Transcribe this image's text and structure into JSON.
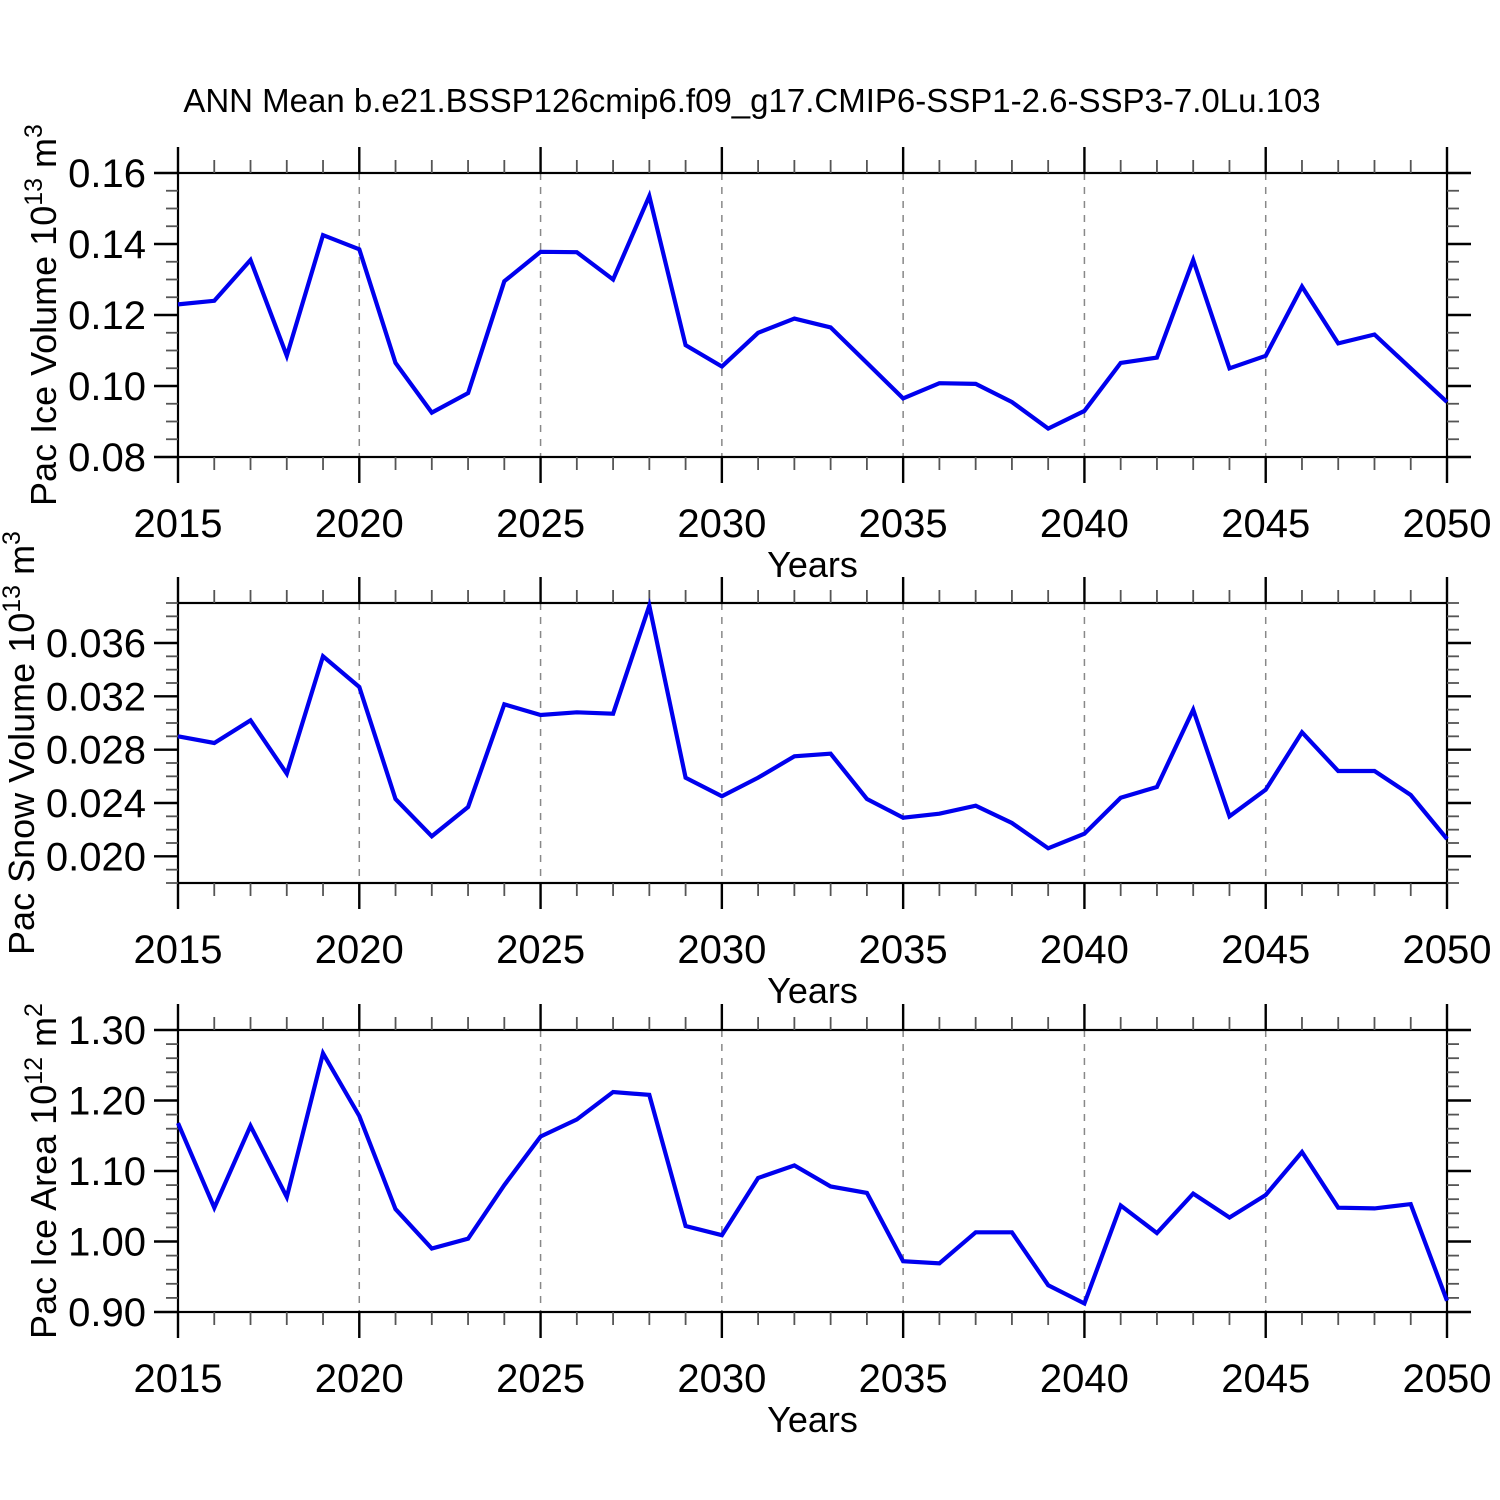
{
  "title": "ANN Mean b.e21.BSSP126cmip6.f09_g17.CMIP6-SSP1-2.6-SSP3-7.0Lu.103",
  "colors": {
    "line": "#0000ee",
    "grid": "#888888",
    "axis": "#000000",
    "minor_tick": "#555555"
  },
  "chart_data": [
    {
      "type": "line",
      "name": "pac-ice-volume",
      "ylabel_prefix": "Pac Ice Volume 10",
      "ylabel_exp": "13",
      "ylabel_unit": " m",
      "ylabel_unit_exp": "3",
      "xlabel": "Years",
      "ylim": [
        0.08,
        0.16
      ],
      "y_major_step": 0.02,
      "y_minor_step": 0.005,
      "tick_decimals": 2,
      "xlim": [
        2015,
        2050
      ],
      "x_major_step": 5,
      "x_minor_step": 1,
      "grid_years": [
        2020,
        2025,
        2030,
        2035,
        2040,
        2045
      ],
      "x_tick_labels": [
        "2015",
        "2020",
        "2025",
        "2030",
        "2035",
        "2040",
        "2045",
        "2050"
      ],
      "years": [
        2015,
        2016,
        2017,
        2018,
        2019,
        2020,
        2021,
        2022,
        2023,
        2024,
        2025,
        2026,
        2027,
        2028,
        2029,
        2030,
        2031,
        2032,
        2033,
        2034,
        2035,
        2036,
        2037,
        2038,
        2039,
        2040,
        2041,
        2042,
        2043,
        2044,
        2045,
        2046,
        2047,
        2048,
        2049,
        2050
      ],
      "values": [
        0.123,
        0.124,
        0.1355,
        0.1085,
        0.1425,
        0.1385,
        0.1065,
        0.0925,
        0.098,
        0.1295,
        0.1378,
        0.1377,
        0.13,
        0.1535,
        0.1115,
        0.1055,
        0.115,
        0.119,
        0.1165,
        0.1065,
        0.0965,
        0.1008,
        0.1006,
        0.0955,
        0.088,
        0.093,
        0.1065,
        0.108,
        0.1355,
        0.105,
        0.1085,
        0.128,
        0.112,
        0.1145,
        0.105,
        0.0955
      ]
    },
    {
      "type": "line",
      "name": "pac-snow-volume",
      "ylabel_prefix": "Pac Snow Volume 10",
      "ylabel_exp": "13",
      "ylabel_unit": " m",
      "ylabel_unit_exp": "3",
      "xlabel": "Years",
      "ylim": [
        0.018,
        0.039
      ],
      "y_major_step": 0.004,
      "y_minor_step": 0.001,
      "tick_decimals": 3,
      "xlim": [
        2015,
        2050
      ],
      "x_major_step": 5,
      "x_minor_step": 1,
      "grid_years": [
        2020,
        2025,
        2030,
        2035,
        2040,
        2045
      ],
      "x_tick_labels": [
        "2015",
        "2020",
        "2025",
        "2030",
        "2035",
        "2040",
        "2045",
        "2050"
      ],
      "years": [
        2015,
        2016,
        2017,
        2018,
        2019,
        2020,
        2021,
        2022,
        2023,
        2024,
        2025,
        2026,
        2027,
        2028,
        2029,
        2030,
        2031,
        2032,
        2033,
        2034,
        2035,
        2036,
        2037,
        2038,
        2039,
        2040,
        2041,
        2042,
        2043,
        2044,
        2045,
        2046,
        2047,
        2048,
        2049,
        2050
      ],
      "values": [
        0.029,
        0.0285,
        0.0302,
        0.0262,
        0.035,
        0.0327,
        0.0243,
        0.0215,
        0.0237,
        0.0314,
        0.0306,
        0.0308,
        0.0307,
        0.0388,
        0.0259,
        0.0245,
        0.0259,
        0.0275,
        0.0277,
        0.0243,
        0.0229,
        0.0232,
        0.0238,
        0.0225,
        0.0206,
        0.0217,
        0.0244,
        0.0252,
        0.031,
        0.023,
        0.025,
        0.0293,
        0.0264,
        0.0264,
        0.0246,
        0.0213
      ]
    },
    {
      "type": "line",
      "name": "pac-ice-area",
      "ylabel_prefix": "Pac Ice Area 10",
      "ylabel_exp": "12",
      "ylabel_unit": " m",
      "ylabel_unit_exp": "2",
      "xlabel": "Years",
      "ylim": [
        0.9,
        1.3
      ],
      "y_major_step": 0.1,
      "y_minor_step": 0.02,
      "tick_decimals": 2,
      "xlim": [
        2015,
        2050
      ],
      "x_major_step": 5,
      "x_minor_step": 1,
      "grid_years": [
        2020,
        2025,
        2030,
        2035,
        2040,
        2045
      ],
      "x_tick_labels": [
        "2015",
        "2020",
        "2025",
        "2030",
        "2035",
        "2040",
        "2045",
        "2050"
      ],
      "years": [
        2015,
        2016,
        2017,
        2018,
        2019,
        2020,
        2021,
        2022,
        2023,
        2024,
        2025,
        2026,
        2027,
        2028,
        2029,
        2030,
        2031,
        2032,
        2033,
        2034,
        2035,
        2036,
        2037,
        2038,
        2039,
        2040,
        2041,
        2042,
        2043,
        2044,
        2045,
        2046,
        2047,
        2048,
        2049,
        2050
      ],
      "values": [
        1.168,
        1.048,
        1.164,
        1.063,
        1.267,
        1.178,
        1.046,
        0.99,
        1.004,
        1.08,
        1.149,
        1.173,
        1.212,
        1.208,
        1.022,
        1.009,
        1.09,
        1.108,
        1.078,
        1.069,
        0.972,
        0.969,
        1.013,
        1.013,
        0.938,
        0.912,
        1.051,
        1.012,
        1.068,
        1.034,
        1.066,
        1.127,
        1.048,
        1.047,
        1.053,
        0.916
      ]
    }
  ]
}
